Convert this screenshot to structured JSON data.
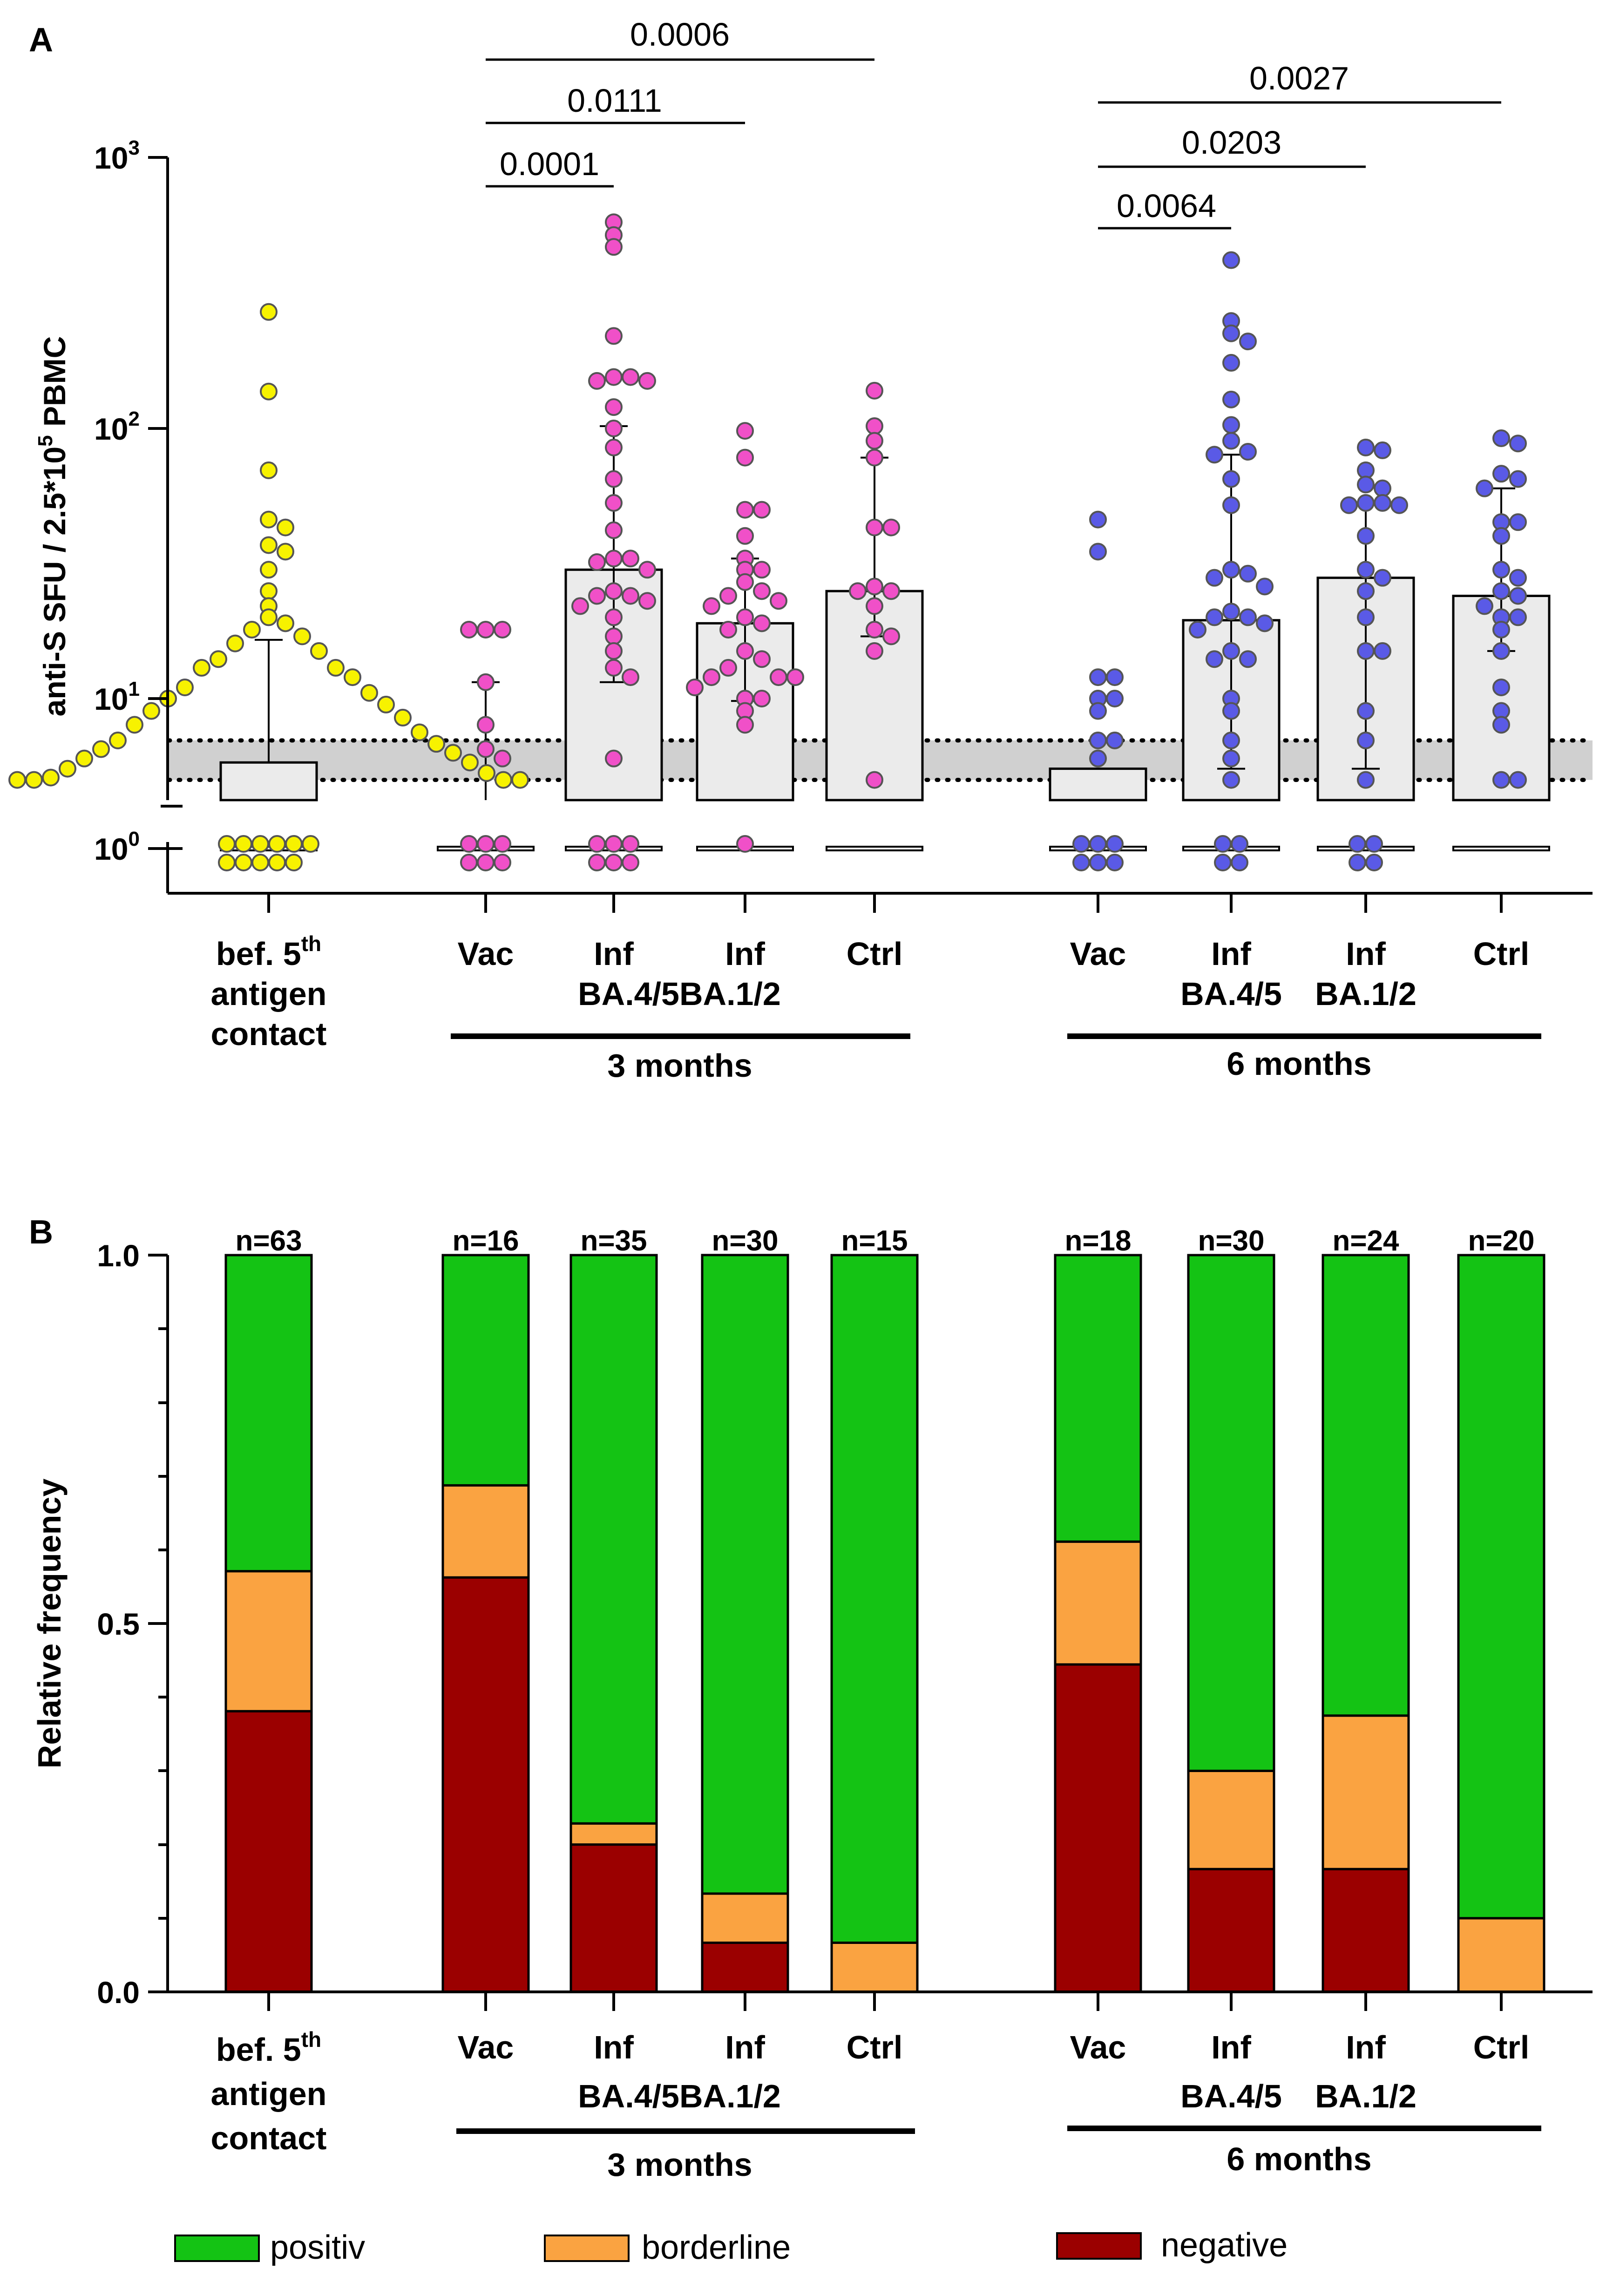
{
  "colors": {
    "positiv": "#14c314",
    "borderline": "#faa341",
    "negative": "#9b0000",
    "baseline_points": "#f7f200",
    "three_month_points": "#f050c8",
    "six_month_points": "#5a5ae6",
    "bar_fill": "#ebebeb",
    "band_fill": "#d0d0d0",
    "point_stroke": "#555555"
  },
  "panel_a": {
    "label": "A",
    "y_axis_label_main": "anti-S SFU / 2.5*10",
    "y_axis_label_sup": "5",
    "y_axis_label_tail": " PBMC",
    "y_ticks": [
      {
        "base": "10",
        "exp": "3",
        "value": 1000
      },
      {
        "base": "10",
        "exp": "2",
        "value": 100
      },
      {
        "base": "10",
        "exp": "1",
        "value": 10
      },
      {
        "base": "10",
        "exp": "0",
        "value": 1
      }
    ],
    "x_labels": {
      "baseline": {
        "line1": "bef. 5",
        "sup": "th",
        "line2": "antigen",
        "line3": "contact"
      },
      "three_months": {
        "vac": "Vac",
        "inf_ba45": "Inf",
        "inf_ba12": "Inf",
        "ctrl": "Ctrl",
        "variants": "BA.4/5BA.1/2",
        "period": "3 months"
      },
      "six_months": {
        "vac": "Vac",
        "inf_ba45": "Inf",
        "inf_ba12": "Inf",
        "ctrl": "Ctrl",
        "variant_ba45": "BA.4/5",
        "variant_ba12": "BA.1/2",
        "period": "6 months"
      }
    },
    "p_values": {
      "m3_vac_ctrl": "0.0006",
      "m3_vac_ba12": "0.0111",
      "m3_vac_ba45": "0.0001",
      "m6_vac_ctrl": "0.0027",
      "m6_vac_ba12": "0.0203",
      "m6_vac_ba45": "0.0064"
    }
  },
  "panel_b": {
    "label": "B",
    "y_axis_label": "Relative frequency",
    "y_ticks": [
      "0.0",
      "0.5",
      "1.0"
    ],
    "n_labels": [
      "n=63",
      "n=16",
      "n=35",
      "n=30",
      "n=15",
      "n=18",
      "n=30",
      "n=24",
      "n=20"
    ],
    "x_labels": {
      "baseline": {
        "line1": "bef. 5",
        "sup": "th",
        "line2": "antigen",
        "line3": "contact"
      },
      "three_months": {
        "vac": "Vac",
        "inf_ba45": "Inf",
        "inf_ba12": "Inf",
        "ctrl": "Ctrl",
        "variants": "BA.4/5BA.1/2",
        "period": "3 months"
      },
      "six_months": {
        "vac": "Vac",
        "inf_ba45": "Inf",
        "inf_ba12": "Inf",
        "ctrl": "Ctrl",
        "variant_ba45": "BA.4/5",
        "variant_ba12": "BA.1/2",
        "period": "6 months"
      }
    },
    "legend": {
      "positiv": "positiv",
      "borderline": "borderline",
      "negative": "negative"
    }
  },
  "chart_data": [
    {
      "type": "scatter",
      "title": "",
      "ylabel": "anti-S SFU / 2.5*10^5 PBMC",
      "yscale": "log",
      "ylim": [
        1,
        1000
      ],
      "borderline_band": [
        5,
        7
      ],
      "groups": [
        {
          "name": "bef. 5th antigen contact",
          "median": 5.8,
          "q3": 16.5,
          "values": [
            270,
            137,
            70,
            46,
            43,
            37,
            35,
            30,
            25,
            22,
            20,
            19,
            18,
            17,
            16,
            15,
            14,
            13,
            13,
            12,
            11,
            10.5,
            10,
            9.5,
            9,
            8.5,
            8,
            7.5,
            7,
            6.8,
            6.5,
            6.3,
            6,
            5.8,
            5.5,
            5.3,
            5.1,
            5,
            5,
            5,
            5
          ]
        },
        {
          "name": "3 months Vac",
          "median": 1,
          "q3": 11.5,
          "values": [
            18,
            18,
            18,
            11.5,
            8,
            6.5,
            6
          ]
        },
        {
          "name": "3 months Inf BA.4/5",
          "median": 30,
          "q1": 11.5,
          "q3": 102,
          "values": [
            580,
            520,
            470,
            220,
            155,
            155,
            150,
            150,
            120,
            100,
            85,
            65,
            53,
            42,
            33,
            33,
            32,
            30,
            25,
            24,
            24,
            23,
            22,
            20,
            17,
            15,
            13,
            12,
            6
          ]
        },
        {
          "name": "3 months Inf BA.1/2",
          "median": 19,
          "q1": 9.8,
          "q3": 33,
          "values": [
            98,
            78,
            50,
            50,
            40,
            33,
            30,
            30,
            27,
            25,
            24,
            23,
            22,
            20,
            19,
            18,
            15,
            14,
            13,
            12,
            12,
            12,
            11,
            10,
            10,
            9,
            8
          ]
        },
        {
          "name": "3 months Ctrl",
          "median": 25,
          "q1": 17,
          "q3": 78,
          "values": [
            138,
            102,
            90,
            78,
            43,
            43,
            26,
            25,
            25,
            22,
            18,
            17,
            15,
            5
          ]
        },
        {
          "name": "6 months Vac",
          "median": 5.5,
          "q3": 1,
          "values": [
            46,
            35,
            12,
            12,
            10,
            10,
            9,
            7,
            7,
            6
          ]
        },
        {
          "name": "6 months Inf BA.4/5",
          "median": 19.5,
          "q1": 5.5,
          "q3": 80,
          "values": [
            420,
            250,
            225,
            210,
            175,
            128,
            103,
            90,
            82,
            80,
            65,
            52,
            30,
            29,
            28,
            26,
            21,
            20,
            20,
            19,
            18,
            15,
            14,
            14,
            10,
            9,
            7,
            6,
            5
          ]
        },
        {
          "name": "6 months Inf BA.1/2",
          "median": 28,
          "q1": 5.5,
          "q3": 53,
          "values": [
            85,
            83,
            70,
            62,
            60,
            53,
            53,
            52,
            52,
            40,
            30,
            28,
            25,
            20,
            15,
            15,
            9,
            7,
            5
          ]
        },
        {
          "name": "6 months Ctrl",
          "median": 24,
          "q1": 15,
          "q3": 60,
          "values": [
            92,
            88,
            68,
            65,
            60,
            45,
            45,
            40,
            30,
            28,
            25,
            24,
            22,
            20,
            20,
            18,
            15,
            11,
            9,
            8,
            5,
            5
          ]
        }
      ],
      "zero_counts": [
        11,
        6,
        6,
        1,
        0,
        6,
        4,
        4,
        0
      ]
    },
    {
      "type": "bar",
      "stacked": true,
      "title": "",
      "ylabel": "Relative frequency",
      "ylim": [
        0,
        1.0
      ],
      "categories": [
        "bef. 5th antigen contact",
        "3 months Vac",
        "3 months Inf BA.4/5",
        "3 months Inf BA.1/2",
        "3 months Ctrl",
        "6 months Vac",
        "6 months Inf BA.4/5",
        "6 months Inf BA.1/2",
        "6 months Ctrl"
      ],
      "series": [
        {
          "name": "negative",
          "values": [
            0.381,
            0.5625,
            0.2,
            0.0667,
            0.0,
            0.4444,
            0.1667,
            0.1667,
            0.0
          ]
        },
        {
          "name": "borderline",
          "values": [
            0.19,
            0.125,
            0.0286,
            0.0667,
            0.0667,
            0.1667,
            0.1333,
            0.2083,
            0.1
          ]
        },
        {
          "name": "positiv",
          "values": [
            0.429,
            0.3125,
            0.7714,
            0.8667,
            0.9333,
            0.3889,
            0.7,
            0.625,
            0.9
          ]
        }
      ]
    }
  ]
}
